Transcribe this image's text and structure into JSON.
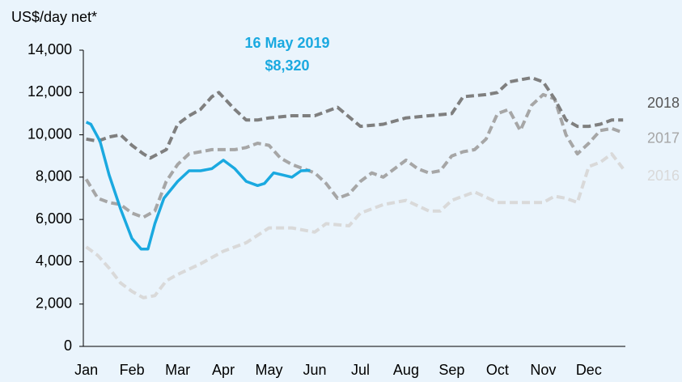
{
  "chart_data": {
    "type": "line",
    "y_label": "US$/day net*",
    "annotations": [
      "16 May 2019",
      "$8,320"
    ],
    "xlim": [
      -0.1,
      11.8
    ],
    "xticks": [
      {
        "value": 0,
        "label": "Jan"
      },
      {
        "value": 1,
        "label": "Feb"
      },
      {
        "value": 2,
        "label": "Mar"
      },
      {
        "value": 3,
        "label": "Apr"
      },
      {
        "value": 4,
        "label": "May"
      },
      {
        "value": 5,
        "label": "Jun"
      },
      {
        "value": 6,
        "label": "Jul"
      },
      {
        "value": 7,
        "label": "Aug"
      },
      {
        "value": 8,
        "label": "Sep"
      },
      {
        "value": 9,
        "label": "Oct"
      },
      {
        "value": 10,
        "label": "Nov"
      },
      {
        "value": 11,
        "label": "Dec"
      }
    ],
    "ylim": [
      0,
      14000
    ],
    "yticks": [
      0,
      {
        "value": 2000,
        "label": "2,000"
      },
      {
        "value": 4000,
        "label": "4,000"
      },
      {
        "value": 6000,
        "label": "6,000"
      },
      {
        "value": 8000,
        "label": "8,000"
      },
      {
        "value": 10000,
        "label": "10,000"
      },
      {
        "value": 12000,
        "label": "12,000"
      },
      {
        "value": 14000,
        "label": "14,000"
      }
    ],
    "series": [
      {
        "name": "2016",
        "color": "#d9d9d9",
        "dashed": true,
        "x": [
          0,
          0.25,
          0.5,
          0.75,
          1,
          1.25,
          1.5,
          1.75,
          2,
          2.5,
          3,
          3.5,
          4,
          4.5,
          5,
          5.25,
          5.75,
          6,
          6.5,
          7,
          7.5,
          7.75,
          8,
          8.5,
          9,
          9.5,
          10,
          10.25,
          10.5,
          10.75,
          11,
          11.25,
          11.5,
          11.75
        ],
        "values": [
          4700,
          4300,
          3700,
          3000,
          2600,
          2300,
          2400,
          3100,
          3400,
          3900,
          4500,
          4900,
          5600,
          5600,
          5400,
          5800,
          5700,
          6300,
          6700,
          6900,
          6400,
          6400,
          6900,
          7300,
          6800,
          6800,
          6800,
          7100,
          7000,
          6800,
          8500,
          8700,
          9100,
          8400
        ]
      },
      {
        "name": "2017",
        "color": "#a6a6a6",
        "dashed": true,
        "x": [
          0,
          0.25,
          0.5,
          0.75,
          1,
          1.25,
          1.5,
          1.75,
          2,
          2.25,
          2.5,
          2.75,
          3,
          3.25,
          3.5,
          3.75,
          4,
          4.25,
          4.5,
          4.75,
          5,
          5.25,
          5.5,
          5.75,
          6,
          6.25,
          6.5,
          6.75,
          7,
          7.25,
          7.5,
          7.75,
          8,
          8.25,
          8.5,
          8.75,
          9,
          9.25,
          9.5,
          9.75,
          10,
          10.25,
          10.5,
          10.75,
          11,
          11.25,
          11.5,
          11.75
        ],
        "values": [
          7900,
          7000,
          6800,
          6700,
          6300,
          6100,
          6400,
          7800,
          8600,
          9100,
          9200,
          9300,
          9300,
          9300,
          9400,
          9600,
          9500,
          8900,
          8600,
          8400,
          8200,
          7700,
          7000,
          7200,
          7800,
          8200,
          8000,
          8400,
          8800,
          8400,
          8200,
          8300,
          9000,
          9200,
          9300,
          9800,
          11000,
          11200,
          10200,
          11400,
          11900,
          11700,
          10000,
          9100,
          9600,
          10200,
          10300,
          10100
        ]
      },
      {
        "name": "2018",
        "color": "#7f7f7f",
        "dashed": true,
        "x": [
          0,
          0.25,
          0.5,
          0.75,
          1,
          1.25,
          1.4,
          1.75,
          2,
          2.25,
          2.5,
          2.75,
          2.9,
          3.25,
          3.5,
          3.75,
          4,
          4.5,
          5,
          5.5,
          6,
          6.5,
          7,
          7.5,
          8,
          8.25,
          8.75,
          9,
          9.25,
          9.5,
          9.75,
          10,
          10.25,
          10.5,
          10.75,
          11,
          11.25,
          11.5,
          11.75
        ],
        "values": [
          9800,
          9700,
          9900,
          10000,
          9500,
          9100,
          8900,
          9300,
          10500,
          10900,
          11200,
          11800,
          12000,
          11200,
          10700,
          10700,
          10800,
          10900,
          10900,
          11300,
          10400,
          10500,
          10800,
          10900,
          11000,
          11800,
          11900,
          12000,
          12500,
          12600,
          12700,
          12500,
          11700,
          10700,
          10400,
          10400,
          10500,
          10700,
          10700
        ]
      },
      {
        "color": "#1aa9e0",
        "dashed": false,
        "x": [
          0,
          0.1,
          0.3,
          0.5,
          0.75,
          1,
          1.2,
          1.35,
          1.5,
          1.7,
          2,
          2.25,
          2.5,
          2.75,
          3,
          3.25,
          3.5,
          3.75,
          3.9,
          4.1,
          4.3,
          4.5,
          4.7,
          4.9
        ],
        "values": [
          10600,
          10500,
          9700,
          8100,
          6500,
          5100,
          4600,
          4600,
          5800,
          7000,
          7800,
          8300,
          8300,
          8400,
          8800,
          8400,
          7800,
          7600,
          7700,
          8200,
          8100,
          8000,
          8300,
          8320
        ]
      }
    ]
  }
}
